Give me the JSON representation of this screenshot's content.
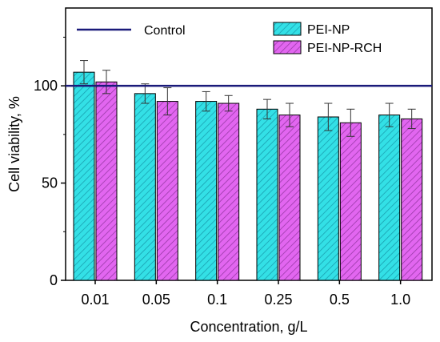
{
  "chart_data": {
    "type": "bar",
    "xlabel": "Concentration, g/L",
    "ylabel": "Cell viability, %",
    "ylim": [
      0,
      140
    ],
    "yticks": [
      0,
      50,
      100
    ],
    "categories": [
      "0.01",
      "0.05",
      "0.1",
      "0.25",
      "0.5",
      "1.0"
    ],
    "series": [
      {
        "name": "PEI-NP",
        "values": [
          107,
          96,
          92,
          88,
          84,
          85
        ],
        "errors": [
          6,
          5,
          5,
          5,
          7,
          6
        ],
        "color": "#33e0e6",
        "hatch": "#1aa0b0"
      },
      {
        "name": "PEI-NP-RCH",
        "values": [
          102,
          92,
          91,
          85,
          81,
          83
        ],
        "errors": [
          6,
          7,
          4,
          6,
          7,
          5
        ],
        "color": "#e266f0",
        "hatch": "#9a3aa8"
      }
    ],
    "reference_line": {
      "name": "Control",
      "value": 100,
      "color": "#1a1a7a"
    },
    "legend": {
      "placement": "top"
    }
  }
}
